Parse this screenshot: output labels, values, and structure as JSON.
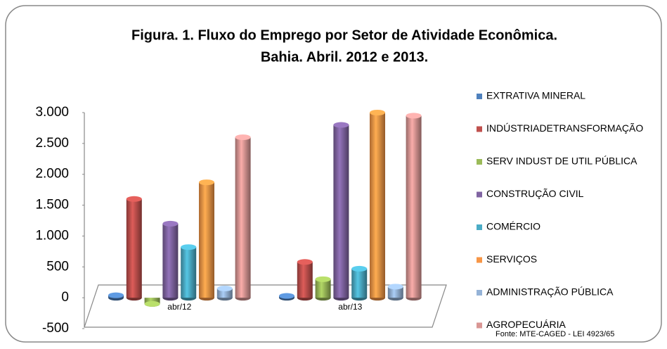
{
  "chart_data": {
    "type": "bar",
    "title": [
      "Figura. 1. Fluxo do Emprego por Setor de Atividade Econômica.",
      "Bahia. Abril. 2012 e  2013."
    ],
    "categories": [
      "abr/12",
      "abr/13"
    ],
    "series": [
      {
        "name": "EXTRATIVA MINERAL",
        "color": "#4f81bd",
        "values": [
          40,
          30
        ]
      },
      {
        "name": "INDÚSTRIADETRANSFORMAÇÃO",
        "color": "#c0504d",
        "values": [
          1600,
          580
        ]
      },
      {
        "name": "SERV INDUST DE UTIL PÚBLICA",
        "color": "#9bbb59",
        "values": [
          -100,
          300
        ]
      },
      {
        "name": "CONSTRUÇÃO CIVIL",
        "color": "#8064a2",
        "values": [
          1200,
          2800
        ]
      },
      {
        "name": "COMÉRCIO",
        "color": "#4bacc6",
        "values": [
          820,
          470
        ]
      },
      {
        "name": "SERVIÇOS",
        "color": "#f79646",
        "values": [
          1870,
          3000
        ]
      },
      {
        "name": "ADMINISTRAÇÃO PÚBLICA",
        "color": "#95b3d7",
        "values": [
          150,
          180
        ]
      },
      {
        "name": "AGROPECUÁRIA",
        "color": "#d99694",
        "values": [
          2600,
          2950
        ]
      }
    ],
    "ylim": [
      -500,
      3000
    ],
    "yticks": [
      -500,
      0,
      500,
      {
        "value": 1000,
        "label": "1.000"
      },
      {
        "value": 1500,
        "label": "1.500"
      },
      {
        "value": 2000,
        "label": "2.000"
      },
      {
        "value": 2500,
        "label": "2.500"
      },
      {
        "value": 3000,
        "label": "3.000"
      }
    ],
    "grid": false,
    "legend": "right",
    "source": "Fonte: MTE-CAGED - LEI 4923/65"
  }
}
